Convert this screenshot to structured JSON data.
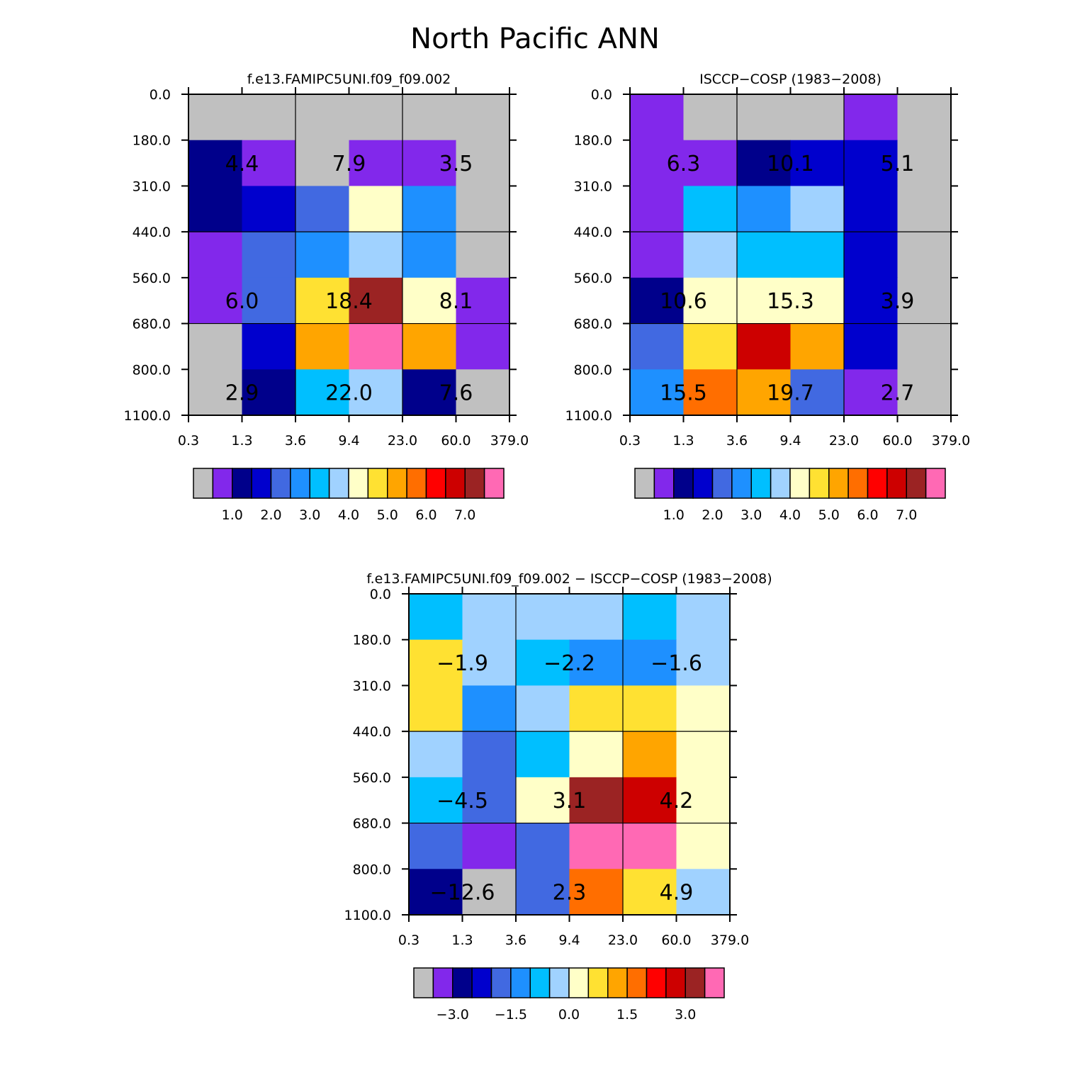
{
  "title": "North Pacific ANN",
  "chart_data": [
    {
      "type": "heatmap",
      "title": "f.e13.FAMIPC5UNI.f09_f09.002",
      "x_ticks": [
        "0.3",
        "1.3",
        "3.6",
        "9.4",
        "23.0",
        "60.0",
        "379.0"
      ],
      "y_ticks": [
        "0.0",
        "180.0",
        "310.0",
        "440.0",
        "560.0",
        "680.0",
        "800.0",
        "1100.0"
      ],
      "cell_colors": [
        [
          "#c0c0c0",
          "#c0c0c0",
          "#c0c0c0",
          "#c0c0c0",
          "#c0c0c0",
          "#c0c0c0"
        ],
        [
          "#00008b",
          "#8228eb",
          "#c0c0c0",
          "#8228eb",
          "#8228eb",
          "#c0c0c0"
        ],
        [
          "#00008b",
          "#0000cd",
          "#4169e1",
          "#ffffc8",
          "#1e90ff",
          "#c0c0c0"
        ],
        [
          "#8228eb",
          "#4169e1",
          "#1e90ff",
          "#a0d2ff",
          "#1e90ff",
          "#c0c0c0"
        ],
        [
          "#8228eb",
          "#4169e1",
          "#ffe132",
          "#9b2323",
          "#ffffc8",
          "#8228eb"
        ],
        [
          "#c0c0c0",
          "#0000cd",
          "#ffa500",
          "#ff69b4",
          "#ffa500",
          "#8228eb"
        ],
        [
          "#c0c0c0",
          "#00008b",
          "#00bfff",
          "#a0d2ff",
          "#00008b",
          "#c0c0c0"
        ]
      ],
      "block_labels": [
        [
          "4.4",
          "7.9",
          "3.5"
        ],
        [
          "6.0",
          "18.4",
          "8.1"
        ],
        [
          "2.9",
          "22.0",
          "7.6"
        ]
      ],
      "colorbar_labels": [
        "1.0",
        "2.0",
        "3.0",
        "4.0",
        "5.0",
        "6.0",
        "7.0"
      ]
    },
    {
      "type": "heatmap",
      "title": "ISCCP-COSP (1983-2008)",
      "x_ticks": [
        "0.3",
        "1.3",
        "3.6",
        "9.4",
        "23.0",
        "60.0",
        "379.0"
      ],
      "y_ticks": [
        "0.0",
        "180.0",
        "310.0",
        "440.0",
        "560.0",
        "680.0",
        "800.0",
        "1100.0"
      ],
      "cell_colors": [
        [
          "#8228eb",
          "#c0c0c0",
          "#c0c0c0",
          "#c0c0c0",
          "#8228eb",
          "#c0c0c0"
        ],
        [
          "#8228eb",
          "#8228eb",
          "#00008b",
          "#0000cd",
          "#0000cd",
          "#c0c0c0"
        ],
        [
          "#8228eb",
          "#00bfff",
          "#1e90ff",
          "#a0d2ff",
          "#0000cd",
          "#c0c0c0"
        ],
        [
          "#8228eb",
          "#a0d2ff",
          "#00bfff",
          "#00bfff",
          "#0000cd",
          "#c0c0c0"
        ],
        [
          "#00008b",
          "#ffffc8",
          "#ffffc8",
          "#ffffc8",
          "#0000cd",
          "#c0c0c0"
        ],
        [
          "#4169e1",
          "#ffe132",
          "#cd0000",
          "#ffa500",
          "#0000cd",
          "#c0c0c0"
        ],
        [
          "#1e90ff",
          "#ff6e00",
          "#ffa500",
          "#4169e1",
          "#8228eb",
          "#c0c0c0"
        ]
      ],
      "block_labels": [
        [
          "6.3",
          "10.1",
          "5.1"
        ],
        [
          "10.6",
          "15.3",
          "3.9"
        ],
        [
          "15.5",
          "19.7",
          "2.7"
        ]
      ],
      "colorbar_labels": [
        "1.0",
        "2.0",
        "3.0",
        "4.0",
        "5.0",
        "6.0",
        "7.0"
      ]
    },
    {
      "type": "heatmap",
      "title": "f.e13.FAMIPC5UNI.f09_f09.002 - ISCCP-COSP (1983-2008)",
      "x_ticks": [
        "0.3",
        "1.3",
        "3.6",
        "9.4",
        "23.0",
        "60.0",
        "379.0"
      ],
      "y_ticks": [
        "0.0",
        "180.0",
        "310.0",
        "440.0",
        "560.0",
        "680.0",
        "800.0",
        "1100.0"
      ],
      "cell_colors": [
        [
          "#00bfff",
          "#a0d2ff",
          "#a0d2ff",
          "#a0d2ff",
          "#00bfff",
          "#a0d2ff"
        ],
        [
          "#ffe132",
          "#a0d2ff",
          "#00bfff",
          "#1e90ff",
          "#1e90ff",
          "#a0d2ff"
        ],
        [
          "#ffe132",
          "#1e90ff",
          "#a0d2ff",
          "#ffe132",
          "#ffe132",
          "#ffffc8"
        ],
        [
          "#a0d2ff",
          "#4169e1",
          "#00bfff",
          "#ffffc8",
          "#ffa500",
          "#ffffc8"
        ],
        [
          "#00bfff",
          "#4169e1",
          "#ffffc8",
          "#9b2323",
          "#cd0000",
          "#ffffc8"
        ],
        [
          "#4169e1",
          "#8228eb",
          "#4169e1",
          "#ff69b4",
          "#ff69b4",
          "#ffffc8"
        ],
        [
          "#00008b",
          "#c0c0c0",
          "#4169e1",
          "#ff6e00",
          "#ffe132",
          "#a0d2ff"
        ]
      ],
      "block_labels": [
        [
          "-1.9",
          "-2.2",
          "-1.6"
        ],
        [
          "-4.5",
          "3.1",
          "4.2"
        ],
        [
          "-12.6",
          "2.3",
          "4.9"
        ]
      ],
      "colorbar_labels": [
        "-3.0",
        "-1.5",
        "0.0",
        "1.5",
        "3.0"
      ]
    }
  ],
  "colorbars": {
    "absolute": {
      "colors": [
        "#c0c0c0",
        "#8228eb",
        "#00008b",
        "#0000cd",
        "#4169e1",
        "#1e90ff",
        "#00bfff",
        "#a0d2ff",
        "#ffffc8",
        "#ffe132",
        "#ffa500",
        "#ff6e00",
        "#ff0000",
        "#cd0000",
        "#9b2323",
        "#ff69b4"
      ]
    },
    "difference": {
      "colors": [
        "#c0c0c0",
        "#8228eb",
        "#00008b",
        "#0000cd",
        "#4169e1",
        "#1e90ff",
        "#00bfff",
        "#a0d2ff",
        "#ffffc8",
        "#ffe132",
        "#ffa500",
        "#ff6e00",
        "#ff0000",
        "#cd0000",
        "#9b2323",
        "#ff69b4"
      ]
    }
  }
}
